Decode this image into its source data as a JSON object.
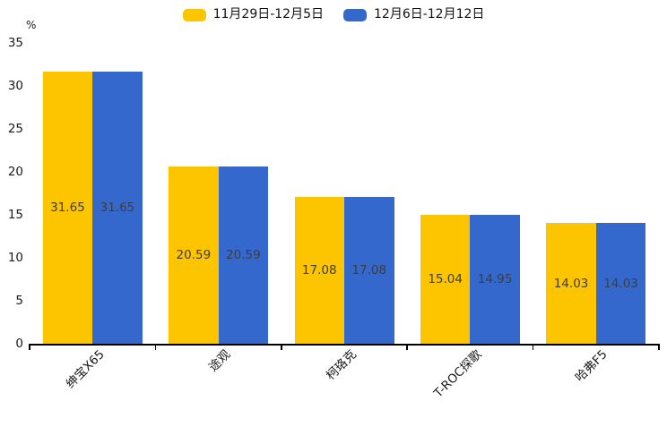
{
  "legend": {
    "items": [
      {
        "label": "11月29日-12月5日",
        "color": "#FDC500"
      },
      {
        "label": "12月6日-12月12日",
        "color": "#3568CD"
      }
    ]
  },
  "colors": {
    "series1": "#FDC500",
    "series2": "#3568CD",
    "axis": "#000000",
    "value_label": "#3d3d3d",
    "background": "#ffffff"
  },
  "chart_data": {
    "type": "bar",
    "title": "",
    "categories": [
      "绅宝X65",
      "途观",
      "柯珞克",
      "T-ROC探歌",
      "哈弗F5"
    ],
    "series": [
      {
        "name": "11月29日-12月5日",
        "color": "#FDC500",
        "values": [
          31.65,
          20.59,
          17.08,
          15.04,
          14.03
        ]
      },
      {
        "name": "12月6日-12月12日",
        "color": "#3568CD",
        "values": [
          31.65,
          20.59,
          17.08,
          14.95,
          14.03
        ]
      }
    ],
    "value_labels": [
      [
        "31.65",
        "20.59",
        "17.08",
        "15.04",
        "14.03"
      ],
      [
        "31.65",
        "20.59",
        "17.08",
        "14.95",
        "14.03"
      ]
    ],
    "xlabel": "",
    "ylabel": "%",
    "ylim": [
      0,
      35
    ],
    "yticks": [
      0,
      5,
      10,
      15,
      20,
      25,
      30,
      35
    ],
    "grid": false,
    "legend_position": "top-center",
    "x_label_rotation_deg": 45
  }
}
